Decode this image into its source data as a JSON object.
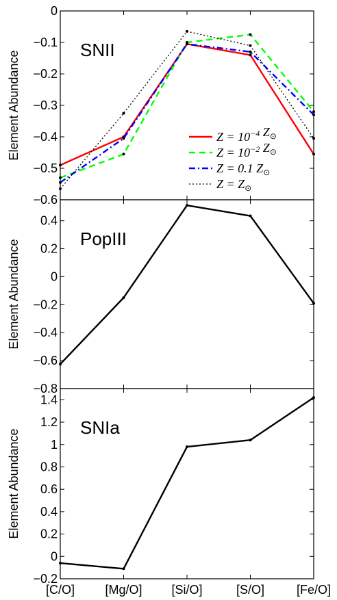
{
  "chart_data": [
    {
      "type": "line",
      "panel_label": "SNII",
      "ylabel": "Element Abundance",
      "categories": [
        "[C/O]",
        "[Mg/O]",
        "[Si/O]",
        "[S/O]",
        "[Fe/O]"
      ],
      "ylim": [
        -0.6,
        0
      ],
      "yticks": [
        0,
        -0.1,
        -0.2,
        -0.3,
        -0.4,
        -0.5,
        -0.6
      ],
      "yticklabels": [
        "0",
        "-0.1",
        "-0.2",
        "-0.3",
        "-0.4",
        "-0.5",
        "-0.6"
      ],
      "legend_position": "bottom-right",
      "series": [
        {
          "name": "Z = 10⁻⁴ Z⊙",
          "legend_main": "Z = 10",
          "legend_sup": "−4",
          "legend_tail": " Z",
          "color": "#ff0000",
          "dash": "solid",
          "values": [
            -0.49,
            -0.4,
            -0.105,
            -0.14,
            -0.455
          ]
        },
        {
          "name": "Z = 10⁻² Z⊙",
          "legend_main": "Z = 10",
          "legend_sup": "−2",
          "legend_tail": " Z",
          "color": "#00ff00",
          "dash": "dashed",
          "values": [
            -0.53,
            -0.455,
            -0.1,
            -0.075,
            -0.32
          ]
        },
        {
          "name": "Z = 0.1 Z⊙",
          "legend_main": "Z = 0.1",
          "legend_sup": "",
          "legend_tail": " Z",
          "color": "#0000ff",
          "dash": "dashdot",
          "values": [
            -0.545,
            -0.405,
            -0.105,
            -0.13,
            -0.33
          ]
        },
        {
          "name": "Z = Z⊙",
          "legend_main": "Z = ",
          "legend_sup": "",
          "legend_tail": "Z",
          "color": "#000000",
          "dash": "dotted",
          "values": [
            -0.565,
            -0.325,
            -0.065,
            -0.11,
            -0.405
          ]
        }
      ]
    },
    {
      "type": "line",
      "panel_label": "PopIII",
      "ylabel": "Element Abundance",
      "categories": [
        "[C/O]",
        "[Mg/O]",
        "[Si/O]",
        "[S/O]",
        "[Fe/O]"
      ],
      "ylim": [
        -0.8,
        0.55
      ],
      "yticks": [
        0.4,
        0.2,
        0,
        -0.2,
        -0.4,
        -0.6,
        -0.8
      ],
      "yticklabels": [
        "0.4",
        "0.2",
        "0",
        "-0.2",
        "-0.4",
        "-0.6",
        "-0.8"
      ],
      "series": [
        {
          "name": "",
          "color": "#000000",
          "dash": "solid",
          "values": [
            -0.625,
            -0.15,
            0.51,
            0.435,
            -0.19
          ]
        }
      ]
    },
    {
      "type": "line",
      "panel_label": "SNIa",
      "ylabel": "Element Abundance",
      "categories": [
        "[C/O]",
        "[Mg/O]",
        "[Si/O]",
        "[S/O]",
        "[Fe/O]"
      ],
      "xticklabels": [
        "[C/O]",
        "[Mg/O]",
        "[Si/O]",
        "[S/O]",
        "[Fe/O]"
      ],
      "ylim": [
        -0.2,
        1.5
      ],
      "yticks": [
        1.4,
        1.2,
        1,
        0.8,
        0.6,
        0.4,
        0.2,
        0,
        -0.2
      ],
      "yticklabels": [
        "1.4",
        "1.2",
        "1",
        "0.8",
        "0.6",
        "0.4",
        "0.2",
        "0",
        "-0.2"
      ],
      "series": [
        {
          "name": "",
          "color": "#000000",
          "dash": "solid",
          "values": [
            -0.06,
            -0.11,
            0.98,
            1.04,
            1.42
          ]
        }
      ]
    }
  ]
}
